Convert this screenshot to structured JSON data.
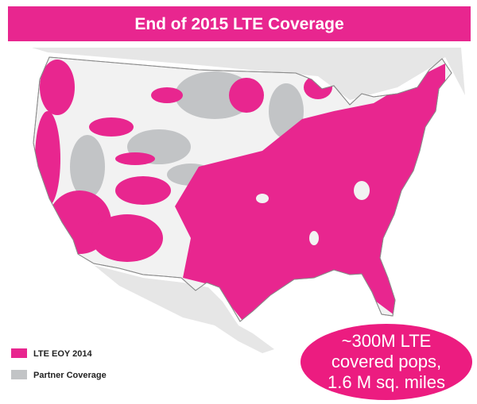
{
  "header": {
    "title": "End of 2015 LTE Coverage"
  },
  "legend": [
    {
      "label": "LTE EOY 2014",
      "color": "#e8268f"
    },
    {
      "label": "Partner Coverage",
      "color": "#c2c4c6"
    }
  ],
  "callout": {
    "lines": [
      "~300M LTE",
      "covered pops,",
      "1.6 M sq. miles"
    ],
    "color": "#ec1c80"
  }
}
